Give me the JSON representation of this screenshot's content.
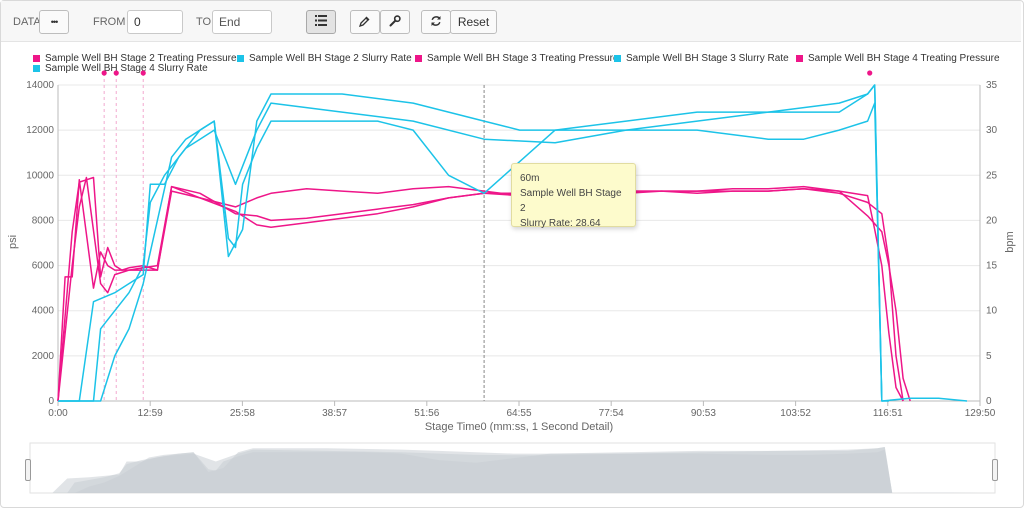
{
  "toolbar": {
    "data_label": "DATA",
    "data_button": "•••",
    "from_label": "FROM",
    "from_value": "0",
    "to_label": "TO",
    "to_placeholder": "End",
    "reset_label": "Reset"
  },
  "tooltip": {
    "title": "60m",
    "series": "Sample Well BH Stage 2",
    "field": "Slurry Rate:",
    "value": "28.64"
  },
  "colors": {
    "pressure": "#ee1689",
    "slurry": "#1cc3e8",
    "navigator": "#c8cdd4"
  },
  "chart_data": {
    "type": "line",
    "xlabel": "Stage Time0 (mm:ss, 1 Second Detail)",
    "ylabel_left": "psi",
    "ylabel_right": "bpm",
    "x_ticks": [
      "0:00",
      "12:59",
      "25:58",
      "38:57",
      "51:56",
      "64:55",
      "77:54",
      "90:53",
      "103:52",
      "116:51",
      "129:50"
    ],
    "y_ticks_left": [
      "0",
      "2000",
      "4000",
      "6000",
      "8000",
      "10000",
      "12000",
      "14000"
    ],
    "y_ticks_right": [
      "0",
      "5",
      "10",
      "15",
      "20",
      "25",
      "30",
      "35"
    ],
    "xlim_min": [
      0,
      129.83
    ],
    "ylim_left": [
      0,
      14000
    ],
    "ylim_right": [
      0,
      35
    ],
    "grid": true,
    "legend_position": "top",
    "crosshair_x_min": 60,
    "series": [
      {
        "name": "Sample Well BH Stage 2 Treating Pressure",
        "axis": "left",
        "color": "#ee1689",
        "x": [
          0,
          2,
          3,
          4,
          5,
          6,
          7,
          8,
          9,
          10,
          12,
          14,
          16,
          20,
          25,
          28,
          30,
          35,
          40,
          45,
          50,
          55,
          60,
          65,
          70,
          75,
          80,
          85,
          90,
          95,
          100,
          105,
          110,
          114,
          116,
          117,
          118,
          119,
          120
        ],
        "y": [
          0,
          7500,
          9700,
          9800,
          9900,
          5500,
          6800,
          6000,
          5800,
          5900,
          6000,
          5800,
          9500,
          9000,
          8600,
          9000,
          9200,
          9400,
          9300,
          9200,
          9400,
          9500,
          9300,
          9100,
          9200,
          9200,
          9300,
          9300,
          9300,
          9400,
          9400,
          9500,
          9300,
          8200,
          7500,
          6000,
          4000,
          1000,
          0
        ]
      },
      {
        "name": "Sample Well BH Stage 2 Slurry Rate",
        "axis": "right",
        "color": "#1cc3e8",
        "x": [
          0,
          5,
          6,
          8,
          10,
          12,
          13,
          15,
          18,
          20,
          22,
          25,
          28,
          30,
          40,
          50,
          60,
          70,
          80,
          90,
          100,
          105,
          110,
          114,
          115,
          116,
          117
        ],
        "y": [
          0,
          0,
          8,
          10,
          12,
          15,
          22,
          25,
          28,
          29,
          30,
          24,
          30,
          33,
          32,
          31,
          29,
          28.6,
          30,
          31,
          32,
          32.5,
          33,
          34,
          35,
          0,
          0
        ]
      },
      {
        "name": "Sample Well BH Stage 3 Treating Pressure",
        "axis": "left",
        "color": "#ee1689",
        "x": [
          0,
          1,
          2,
          3,
          5,
          6,
          7,
          8,
          10,
          12,
          14,
          16,
          20,
          25,
          28,
          30,
          35,
          40,
          45,
          50,
          55,
          60,
          65,
          70,
          75,
          80,
          85,
          90,
          95,
          100,
          105,
          110,
          114,
          116,
          117,
          118,
          119
        ],
        "y": [
          0,
          5500,
          5500,
          9800,
          5000,
          6600,
          6000,
          5800,
          5800,
          5800,
          5800,
          9300,
          9000,
          8400,
          7800,
          7700,
          7900,
          8100,
          8300,
          8600,
          9000,
          9200,
          9100,
          9100,
          9200,
          9300,
          9300,
          9200,
          9300,
          9300,
          9400,
          9200,
          8800,
          8300,
          6200,
          2000,
          0
        ]
      },
      {
        "name": "Sample Well BH Stage 3 Slurry Rate",
        "axis": "right",
        "color": "#1cc3e8",
        "x": [
          0,
          6,
          8,
          10,
          12,
          14,
          16,
          18,
          20,
          22,
          24,
          26,
          28,
          30,
          40,
          50,
          55,
          60,
          65,
          70,
          80,
          90,
          100,
          105,
          110,
          114,
          115,
          116
        ],
        "y": [
          0,
          0,
          5,
          8,
          13,
          20,
          27,
          29,
          30,
          31,
          16,
          19,
          31,
          34,
          34,
          33,
          32,
          31,
          30,
          30,
          30,
          30,
          29,
          29,
          30,
          31,
          33,
          0
        ]
      },
      {
        "name": "Sample Well BH Stage 4 Treating Pressure",
        "axis": "left",
        "color": "#ee1689",
        "x": [
          0,
          2,
          3,
          4,
          6,
          7,
          8,
          10,
          12,
          14,
          16,
          20,
          25,
          28,
          30,
          35,
          40,
          45,
          50,
          55,
          60,
          65,
          70,
          75,
          80,
          85,
          90,
          95,
          100,
          105,
          110,
          114,
          115,
          116,
          117,
          118,
          119
        ],
        "y": [
          0,
          6000,
          8600,
          9900,
          5200,
          4800,
          5600,
          5800,
          5900,
          6000,
          9500,
          9200,
          8300,
          8200,
          8000,
          8100,
          8300,
          8500,
          8700,
          9000,
          9200,
          9200,
          9200,
          9300,
          9200,
          9300,
          9300,
          9300,
          9300,
          9400,
          9300,
          9100,
          7600,
          6000,
          3000,
          600,
          0
        ]
      },
      {
        "name": "Sample Well BH Stage 4 Slurry Rate",
        "axis": "right",
        "color": "#1cc3e8",
        "x": [
          0,
          3,
          5,
          8,
          10,
          12,
          13,
          15,
          17,
          20,
          22,
          24,
          25,
          26,
          28,
          30,
          35,
          40,
          45,
          50,
          55,
          60,
          70,
          80,
          90,
          100,
          105,
          110,
          114,
          115,
          116,
          120,
          124,
          128
        ],
        "y": [
          0,
          0,
          11,
          12,
          13,
          14,
          24,
          24,
          27,
          30,
          31,
          18,
          17,
          24,
          28,
          31,
          31,
          31,
          31,
          30,
          25,
          23,
          30,
          31,
          32,
          32,
          32,
          32,
          34,
          35,
          0,
          0.3,
          0.3,
          0
        ]
      }
    ],
    "navigator_label": ""
  }
}
